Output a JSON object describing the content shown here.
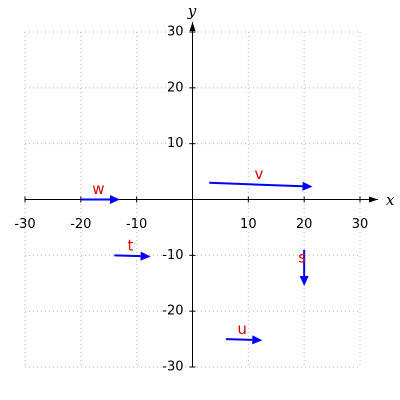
{
  "chart_data": {
    "type": "vector",
    "x_label": "x",
    "y_label": "y",
    "xlim": [
      -30,
      30
    ],
    "ylim": [
      -30,
      30
    ],
    "xticks": [
      -30,
      -20,
      -10,
      10,
      20,
      30
    ],
    "yticks": [
      -30,
      -20,
      -10,
      10,
      20,
      30
    ],
    "grid": true,
    "color": "#0000ff",
    "label_color": "#dd0000",
    "series": [
      {
        "name": "w",
        "x": [
          -20,
          -13
        ],
        "y": [
          0,
          0
        ]
      },
      {
        "name": "v",
        "x": [
          3,
          21.5
        ],
        "y": [
          3,
          2.3
        ]
      },
      {
        "name": "t",
        "x": [
          -14,
          -7.5
        ],
        "y": [
          -10,
          -10.2
        ]
      },
      {
        "name": "s",
        "x": [
          20,
          20
        ],
        "y": [
          -9,
          -15.5
        ]
      },
      {
        "name": "u",
        "x": [
          6,
          12.5
        ],
        "y": [
          -25,
          -25.2
        ]
      }
    ]
  }
}
